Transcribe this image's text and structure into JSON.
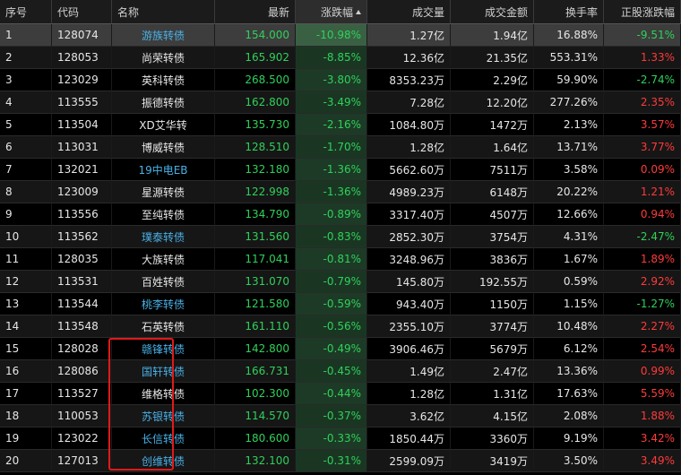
{
  "header": {
    "index": "序号",
    "code": "代码",
    "name": "名称",
    "latest": "最新",
    "change_pct": "涨跌幅",
    "volume": "成交量",
    "turnover_amount": "成交金额",
    "turnover_rate": "换手率",
    "stock_change_pct": "正股涨跌幅",
    "sort_icon": "sort-ascending-icon"
  },
  "colors": {
    "up": "#ff3a3a",
    "down": "#2ed15a",
    "link": "#49b0e6",
    "highlight_border": "#e01a1a"
  },
  "rows": [
    {
      "idx": "1",
      "code": "128074",
      "name": "游族转债",
      "name_style": "link",
      "latest": "154.000",
      "pct": "-10.98%",
      "vol": "1.27亿",
      "amt": "1.94亿",
      "rate": "16.88%",
      "stock_pct": "-9.51%",
      "stock_dir": "down",
      "selected": true
    },
    {
      "idx": "2",
      "code": "128053",
      "name": "尚荣转债",
      "name_style": "plain",
      "latest": "165.902",
      "pct": "-8.85%",
      "vol": "12.36亿",
      "amt": "21.35亿",
      "rate": "553.31%",
      "stock_pct": "1.33%",
      "stock_dir": "up"
    },
    {
      "idx": "3",
      "code": "123029",
      "name": "英科转债",
      "name_style": "plain",
      "latest": "268.500",
      "pct": "-3.80%",
      "vol": "8353.23万",
      "amt": "2.29亿",
      "rate": "59.90%",
      "stock_pct": "-2.74%",
      "stock_dir": "down"
    },
    {
      "idx": "4",
      "code": "113555",
      "name": "振德转债",
      "name_style": "plain",
      "latest": "162.800",
      "pct": "-3.49%",
      "vol": "7.28亿",
      "amt": "12.20亿",
      "rate": "277.26%",
      "stock_pct": "2.35%",
      "stock_dir": "up"
    },
    {
      "idx": "5",
      "code": "113504",
      "name": "XD艾华转",
      "name_style": "plain",
      "latest": "135.730",
      "pct": "-2.16%",
      "vol": "1084.80万",
      "amt": "1472万",
      "rate": "2.13%",
      "stock_pct": "3.57%",
      "stock_dir": "up"
    },
    {
      "idx": "6",
      "code": "113031",
      "name": "博威转债",
      "name_style": "plain",
      "latest": "128.510",
      "pct": "-1.70%",
      "vol": "1.28亿",
      "amt": "1.64亿",
      "rate": "13.71%",
      "stock_pct": "3.77%",
      "stock_dir": "up"
    },
    {
      "idx": "7",
      "code": "132021",
      "name": "19中电EB",
      "name_style": "link",
      "latest": "132.180",
      "pct": "-1.36%",
      "vol": "5662.60万",
      "amt": "7511万",
      "rate": "3.58%",
      "stock_pct": "0.09%",
      "stock_dir": "up"
    },
    {
      "idx": "8",
      "code": "123009",
      "name": "星源转债",
      "name_style": "plain",
      "latest": "122.998",
      "pct": "-1.36%",
      "vol": "4989.23万",
      "amt": "6148万",
      "rate": "20.22%",
      "stock_pct": "1.21%",
      "stock_dir": "up"
    },
    {
      "idx": "9",
      "code": "113556",
      "name": "至纯转债",
      "name_style": "plain",
      "latest": "134.790",
      "pct": "-0.89%",
      "vol": "3317.40万",
      "amt": "4507万",
      "rate": "12.66%",
      "stock_pct": "0.94%",
      "stock_dir": "up"
    },
    {
      "idx": "10",
      "code": "113562",
      "name": "璞泰转债",
      "name_style": "link",
      "latest": "131.560",
      "pct": "-0.83%",
      "vol": "2852.30万",
      "amt": "3754万",
      "rate": "4.31%",
      "stock_pct": "-2.47%",
      "stock_dir": "down"
    },
    {
      "idx": "11",
      "code": "128035",
      "name": "大族转债",
      "name_style": "plain",
      "latest": "117.041",
      "pct": "-0.81%",
      "vol": "3248.96万",
      "amt": "3836万",
      "rate": "1.67%",
      "stock_pct": "1.89%",
      "stock_dir": "up"
    },
    {
      "idx": "12",
      "code": "113531",
      "name": "百姓转债",
      "name_style": "plain",
      "latest": "131.070",
      "pct": "-0.79%",
      "vol": "145.80万",
      "amt": "192.55万",
      "rate": "0.59%",
      "stock_pct": "2.92%",
      "stock_dir": "up"
    },
    {
      "idx": "13",
      "code": "113544",
      "name": "桃李转债",
      "name_style": "link",
      "latest": "121.580",
      "pct": "-0.59%",
      "vol": "943.40万",
      "amt": "1150万",
      "rate": "1.15%",
      "stock_pct": "-1.27%",
      "stock_dir": "down"
    },
    {
      "idx": "14",
      "code": "113548",
      "name": "石英转债",
      "name_style": "plain",
      "latest": "161.110",
      "pct": "-0.56%",
      "vol": "2355.10万",
      "amt": "3774万",
      "rate": "10.48%",
      "stock_pct": "2.27%",
      "stock_dir": "up"
    },
    {
      "idx": "15",
      "code": "128028",
      "name": "赣锋转债",
      "name_style": "link",
      "latest": "142.800",
      "pct": "-0.49%",
      "vol": "3906.46万",
      "amt": "5679万",
      "rate": "6.12%",
      "stock_pct": "2.54%",
      "stock_dir": "up"
    },
    {
      "idx": "16",
      "code": "128086",
      "name": "国轩转债",
      "name_style": "link",
      "latest": "166.731",
      "pct": "-0.45%",
      "vol": "1.49亿",
      "amt": "2.47亿",
      "rate": "13.36%",
      "stock_pct": "0.99%",
      "stock_dir": "up"
    },
    {
      "idx": "17",
      "code": "113527",
      "name": "维格转债",
      "name_style": "plain",
      "latest": "102.300",
      "pct": "-0.44%",
      "vol": "1.28亿",
      "amt": "1.31亿",
      "rate": "17.63%",
      "stock_pct": "5.59%",
      "stock_dir": "up"
    },
    {
      "idx": "18",
      "code": "110053",
      "name": "苏银转债",
      "name_style": "link",
      "latest": "114.570",
      "pct": "-0.37%",
      "vol": "3.62亿",
      "amt": "4.15亿",
      "rate": "2.08%",
      "stock_pct": "1.88%",
      "stock_dir": "up"
    },
    {
      "idx": "19",
      "code": "123022",
      "name": "长信转债",
      "name_style": "link",
      "latest": "180.600",
      "pct": "-0.33%",
      "vol": "1850.44万",
      "amt": "3360万",
      "rate": "9.19%",
      "stock_pct": "3.42%",
      "stock_dir": "up"
    },
    {
      "idx": "20",
      "code": "127013",
      "name": "创维转债",
      "name_style": "link",
      "latest": "132.100",
      "pct": "-0.31%",
      "vol": "2599.09万",
      "amt": "3419万",
      "rate": "3.50%",
      "stock_pct": "3.49%",
      "stock_dir": "up"
    }
  ]
}
